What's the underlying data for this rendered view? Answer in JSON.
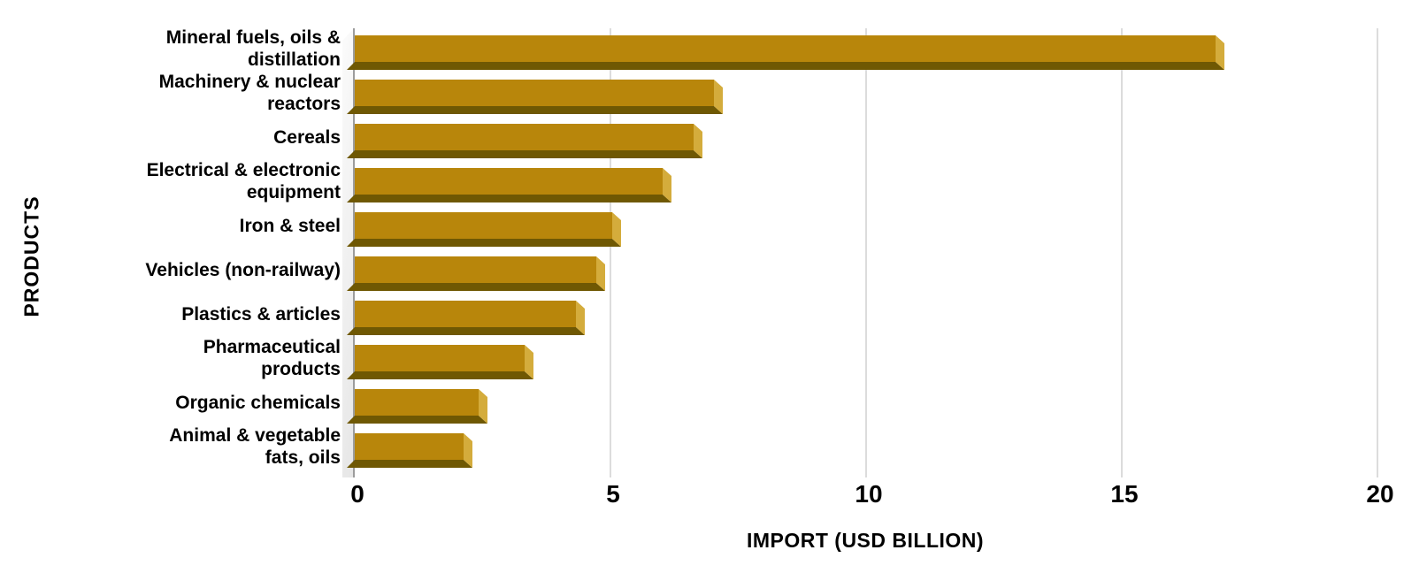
{
  "chart_data": {
    "type": "bar",
    "orientation": "horizontal",
    "title": "",
    "categories": [
      "Mineral fuels, oils &\ndistillation",
      "Machinery & nuclear\nreactors",
      "Cereals",
      "Electrical & electronic\nequipment",
      "Iron & steel",
      "Vehicles (non-railway)",
      "Plastics & articles",
      "Pharmaceutical\nproducts",
      "Organic chemicals",
      "Animal & vegetable\nfats, oils"
    ],
    "values": [
      17.0,
      7.2,
      6.8,
      6.2,
      5.2,
      4.9,
      4.5,
      3.5,
      2.6,
      2.3
    ],
    "xlabel": "IMPORT (USD BILLION)",
    "ylabel": "PRODUCTS",
    "xlim": [
      0,
      20
    ],
    "xticks": [
      0,
      5,
      10,
      15,
      20
    ],
    "grid": true,
    "legend": "none",
    "bar_style": "3d-bevel",
    "colors": {
      "bar_face": "#B8860B",
      "bar_end_bevel": "#D4AC3C",
      "bar_bottom_shade": "#6F5803",
      "gridline": "#DCDCDC",
      "axis_line": "#9C9C9C",
      "text": "#000000",
      "background": "#FFFFFF"
    }
  }
}
